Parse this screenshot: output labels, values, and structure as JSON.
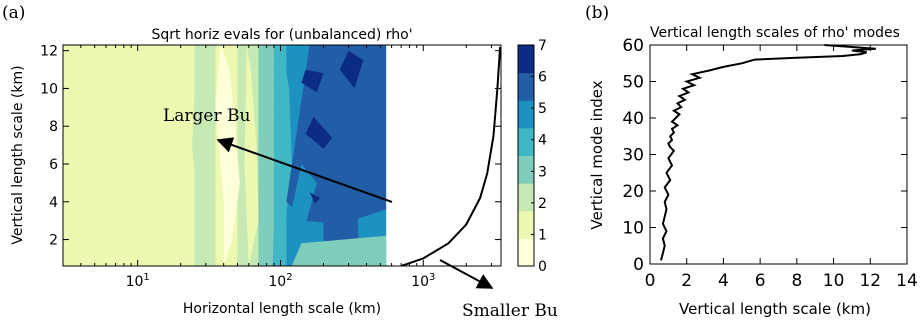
{
  "panel_a": {
    "label": "(a)",
    "title": "Sqrt horiz evals for (unbalanced) rho'",
    "xlabel": "Horizontal length scale (km)",
    "ylabel": "Vertical length scale (km)",
    "annotation_larger": "Larger Bu",
    "annotation_smaller": "Smaller Bu",
    "colorbar_ticks": [
      "0",
      "1",
      "2",
      "3",
      "4",
      "5",
      "6",
      "7"
    ],
    "colors": [
      "#ffffd9",
      "#edf8b1",
      "#c7e9b4",
      "#7fcdbb",
      "#41b6c4",
      "#1d91c0",
      "#225ea8",
      "#0c2c84"
    ]
  },
  "panel_b": {
    "label": "(b)",
    "title": "Vertical length scales of rho' modes",
    "xlabel": "Vertical length scale (km)",
    "ylabel": "Vertical mode index"
  },
  "chart_data": [
    {
      "type": "heatmap",
      "title": "Sqrt horiz evals for (unbalanced) rho'",
      "xlabel": "Horizontal length scale (km)",
      "ylabel": "Vertical length scale (km)",
      "xscale": "log",
      "xlim": [
        3,
        3500
      ],
      "ylim": [
        0.6,
        12.3
      ],
      "x_ticks": [
        "10^1",
        "10^2",
        "10^3"
      ],
      "y_ticks": [
        2,
        4,
        6,
        8,
        10,
        12
      ],
      "colorbar": {
        "min": 0,
        "max": 7,
        "ticks": [
          0,
          1,
          2,
          3,
          4,
          5,
          6,
          7
        ]
      },
      "x_bands_km": [
        3,
        10,
        18,
        25,
        35,
        50,
        70,
        90,
        110,
        200,
        350,
        550
      ],
      "band_levels": [
        1,
        1,
        1.5,
        2,
        1.5,
        2,
        3,
        4,
        5.5,
        6,
        5.5
      ],
      "data_extent_x_km": [
        3,
        550
      ],
      "line": {
        "x_km": [
          700,
          1000,
          1500,
          2000,
          2500,
          2800,
          3100,
          3300,
          3450
        ],
        "y_km": [
          0.6,
          1.0,
          1.8,
          2.8,
          4.2,
          5.5,
          7.5,
          10.0,
          12.2
        ]
      },
      "annotations": [
        {
          "text": "Larger Bu",
          "arrow_from": [
            550,
            3.9
          ],
          "arrow_to": [
            32,
            7.8
          ]
        },
        {
          "text": "Smaller Bu",
          "arrow_from": [
            1100,
            0.7
          ],
          "arrow_to": [
            3500,
            -0.5
          ]
        }
      ]
    },
    {
      "type": "line",
      "title": "Vertical length scales of rho' modes",
      "xlabel": "Vertical length scale (km)",
      "ylabel": "Vertical mode index",
      "xlim": [
        0,
        14
      ],
      "ylim": [
        0,
        60
      ],
      "x_ticks": [
        0,
        2,
        4,
        6,
        8,
        10,
        12,
        14
      ],
      "y_ticks": [
        0,
        10,
        20,
        30,
        40,
        50,
        60
      ],
      "series": [
        {
          "x": [
            0.6,
            0.7,
            0.8,
            0.7,
            0.9,
            0.7,
            0.8,
            0.9,
            0.8,
            1.0,
            0.8,
            1.1,
            0.9,
            1.2,
            1.0,
            1.3,
            1.1,
            1.0,
            1.2,
            1.1,
            1.3,
            1.2,
            1.5,
            1.2,
            1.4,
            1.6,
            1.3,
            1.7,
            1.5,
            1.9,
            1.6,
            2.1,
            1.8,
            2.4,
            2.0,
            2.7,
            2.3,
            3.2,
            4.0,
            5.0,
            5.7,
            8.0,
            10.5,
            11.5,
            11.8,
            11.0,
            12.3,
            9.5
          ],
          "y": [
            1,
            3,
            5,
            7,
            9,
            11,
            13,
            15,
            17,
            19,
            21,
            23,
            25,
            27,
            29,
            31,
            32,
            33,
            34,
            35,
            36,
            37,
            38,
            39,
            40,
            41,
            42,
            43,
            44,
            45,
            46,
            47,
            48,
            49,
            50,
            51,
            52,
            53,
            54,
            55,
            56,
            56.5,
            57,
            57.5,
            58,
            58.5,
            59,
            60
          ]
        }
      ]
    }
  ]
}
